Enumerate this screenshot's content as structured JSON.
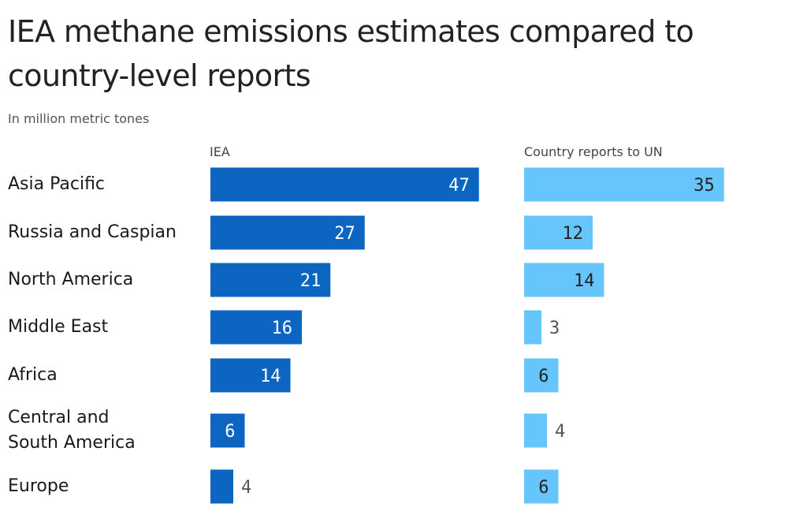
{
  "colors": {
    "iea": "#0d65c2",
    "un": "#66c5fa",
    "inside_label_iea": "#ffffff",
    "inside_label_un": "#222222",
    "outside_label": "#555555"
  },
  "chart_data": {
    "type": "bar",
    "orientation": "horizontal",
    "title": "IEA methane emissions estimates compared to country-level reports",
    "subtitle": "In million metric tones",
    "categories": [
      "Asia Pacific",
      "Russia and Caspian",
      "North America",
      "Middle East",
      "Africa",
      "Central and South America",
      "Europe"
    ],
    "category_lines": [
      [
        "Asia Pacific"
      ],
      [
        "Russia and Caspian"
      ],
      [
        "North America"
      ],
      [
        "Middle East"
      ],
      [
        "Africa"
      ],
      [
        "Central and",
        "South America"
      ],
      [
        "Europe"
      ]
    ],
    "series": [
      {
        "name": "IEA",
        "values": [
          47,
          27,
          21,
          16,
          14,
          6,
          4
        ]
      },
      {
        "name": "Country reports to UN",
        "values": [
          35,
          12,
          14,
          3,
          6,
          4,
          6
        ]
      }
    ],
    "xlim": [
      0,
      47
    ],
    "grid": false,
    "legend": "column headers"
  }
}
